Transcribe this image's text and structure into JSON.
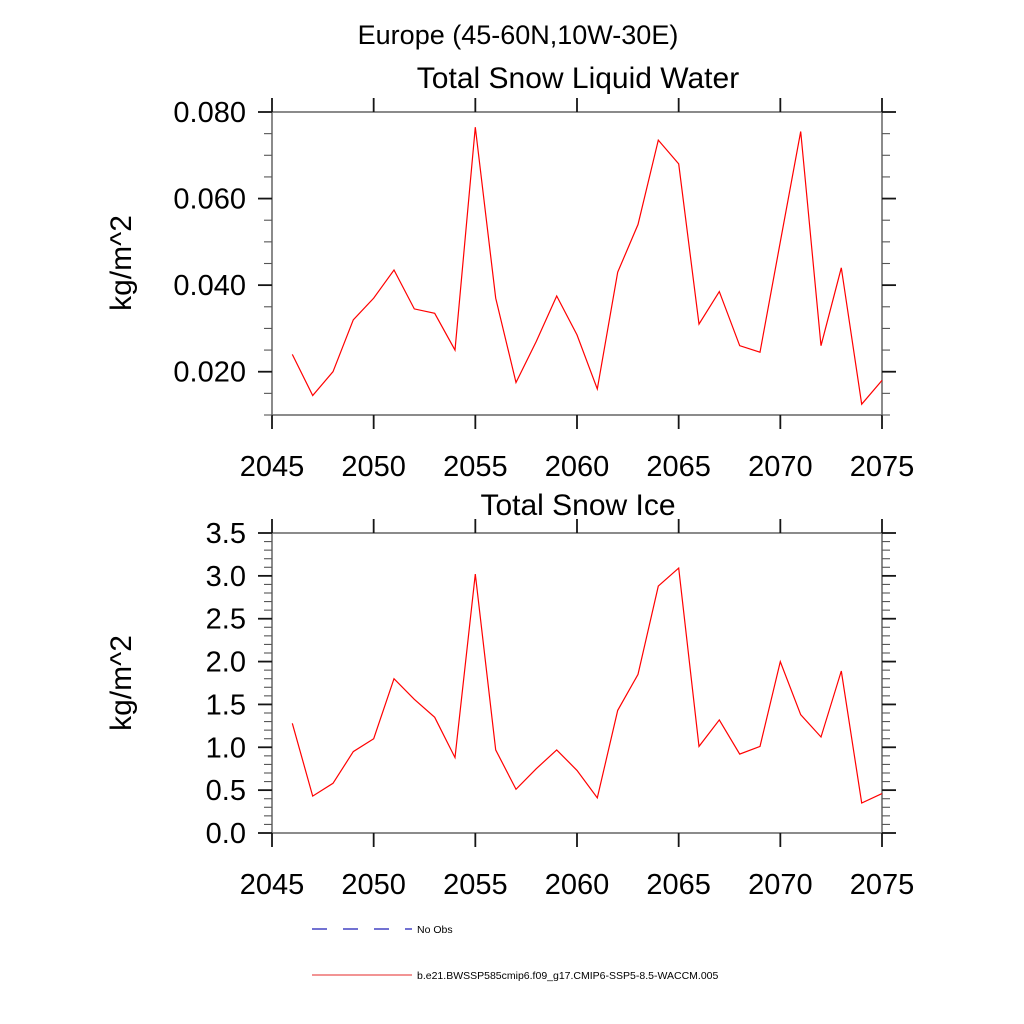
{
  "titles": {
    "main": "Europe (45-60N,10W-30E)"
  },
  "chart_data": [
    {
      "type": "line",
      "title": "Total Snow Liquid Water",
      "ylabel": "kg/m^2",
      "xlabel": "",
      "line_color": "#ff0000",
      "xlim": [
        2045,
        2075
      ],
      "ylim": [
        0.01,
        0.08
      ],
      "grid": false,
      "x": [
        2046,
        2047,
        2048,
        2049,
        2050,
        2051,
        2052,
        2053,
        2054,
        2055,
        2056,
        2057,
        2058,
        2059,
        2060,
        2061,
        2062,
        2063,
        2064,
        2065,
        2066,
        2067,
        2068,
        2069,
        2070,
        2071,
        2072,
        2073,
        2074,
        2075
      ],
      "values": [
        0.024,
        0.0145,
        0.02,
        0.032,
        0.037,
        0.0435,
        0.0345,
        0.0335,
        0.025,
        0.0765,
        0.037,
        0.0175,
        0.027,
        0.0375,
        0.0285,
        0.016,
        0.043,
        0.054,
        0.0735,
        0.068,
        0.031,
        0.0385,
        0.026,
        0.0245,
        0.05,
        0.0755,
        0.026,
        0.044,
        0.0125,
        0.018
      ],
      "x_ticks": {
        "values": [
          2045,
          2050,
          2055,
          2060,
          2065,
          2070,
          2075
        ],
        "labels": [
          "2045",
          "2050",
          "2055",
          "2060",
          "2065",
          "2070",
          "2075"
        ]
      },
      "y_ticks": {
        "values": [
          0.02,
          0.04,
          0.06,
          0.08
        ],
        "labels": [
          "0.020",
          "0.040",
          "0.060",
          "0.080"
        ]
      },
      "y_minor_step": 0.005
    },
    {
      "type": "line",
      "title": "Total Snow Ice",
      "ylabel": "kg/m^2",
      "xlabel": "",
      "line_color": "#ff0000",
      "xlim": [
        2045,
        2075
      ],
      "ylim": [
        0.0,
        3.5
      ],
      "grid": false,
      "x": [
        2046,
        2047,
        2048,
        2049,
        2050,
        2051,
        2052,
        2053,
        2054,
        2055,
        2056,
        2057,
        2058,
        2059,
        2060,
        2061,
        2062,
        2063,
        2064,
        2065,
        2066,
        2067,
        2068,
        2069,
        2070,
        2071,
        2072,
        2073,
        2074,
        2075
      ],
      "values": [
        1.28,
        0.43,
        0.58,
        0.95,
        1.1,
        1.8,
        1.56,
        1.35,
        0.88,
        3.02,
        0.97,
        0.51,
        0.75,
        0.97,
        0.73,
        0.41,
        1.43,
        1.85,
        2.88,
        3.09,
        1.01,
        1.32,
        0.92,
        1.01,
        2.0,
        1.38,
        1.12,
        1.89,
        0.35,
        0.46
      ],
      "x_ticks": {
        "values": [
          2045,
          2050,
          2055,
          2060,
          2065,
          2070,
          2075
        ],
        "labels": [
          "2045",
          "2050",
          "2055",
          "2060",
          "2065",
          "2070",
          "2075"
        ]
      },
      "y_ticks": {
        "values": [
          0.0,
          0.5,
          1.0,
          1.5,
          2.0,
          2.5,
          3.0,
          3.5
        ],
        "labels": [
          "0.0",
          "0.5",
          "1.0",
          "1.5",
          "2.0",
          "2.5",
          "3.0",
          "3.5"
        ]
      },
      "y_minor_step": 0.1
    }
  ],
  "legend": {
    "items": [
      {
        "label": "No Obs",
        "line_color": "#4444c4",
        "dash": "15,16"
      },
      {
        "label": "b.e21.BWSSP585cmip6.f09_g17.CMIP6-SSP5-8.5-WACCM.005",
        "line_color": "#ee7070",
        "dash": ""
      }
    ]
  }
}
